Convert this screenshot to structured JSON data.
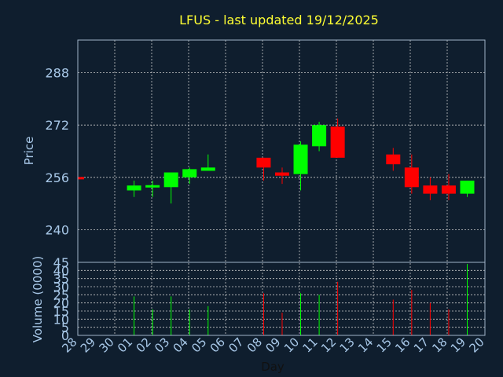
{
  "colors": {
    "background": "#0f1e2e",
    "title": "#ffff33",
    "axis_text": "#a8c8e8",
    "xlabel": "#111111",
    "grid": "#c8c8c8",
    "frame": "#a0b4c8",
    "up": "#00ff00",
    "down": "#ff0000"
  },
  "chart_data": {
    "type": "candlestick",
    "title": "LFUS - last updated 19/12/2025",
    "xlabel": "Day",
    "categories": [
      "28",
      "29",
      "30",
      "01",
      "02",
      "03",
      "04",
      "05",
      "06",
      "07",
      "08",
      "09",
      "10",
      "11",
      "12",
      "13",
      "14",
      "15",
      "16",
      "17",
      "18",
      "19",
      "20"
    ],
    "price": {
      "ylabel": "Price",
      "ylim": [
        230,
        298
      ],
      "ticks": [
        240,
        256,
        272,
        288
      ],
      "ohlc": [
        {
          "day": "28",
          "open": 256,
          "high": 256,
          "low": 256,
          "close": 255.5
        },
        {
          "day": "01",
          "open": 252,
          "high": 255,
          "low": 250,
          "close": 253.5
        },
        {
          "day": "02",
          "open": 253,
          "high": 255,
          "low": 250,
          "close": 253.5
        },
        {
          "day": "03",
          "open": 253,
          "high": 257,
          "low": 248,
          "close": 257.5
        },
        {
          "day": "04",
          "open": 256,
          "high": 259,
          "low": 254,
          "close": 258.5
        },
        {
          "day": "05",
          "open": 258,
          "high": 263,
          "low": 258,
          "close": 259
        },
        {
          "day": "08",
          "open": 262,
          "high": 262,
          "low": 255,
          "close": 259
        },
        {
          "day": "09",
          "open": 257.5,
          "high": 259,
          "low": 254,
          "close": 256.5
        },
        {
          "day": "10",
          "open": 257,
          "high": 267,
          "low": 252,
          "close": 266
        },
        {
          "day": "11",
          "open": 265.5,
          "high": 273,
          "low": 264,
          "close": 272
        },
        {
          "day": "12",
          "open": 271.5,
          "high": 274,
          "low": 262,
          "close": 262
        },
        {
          "day": "15",
          "open": 263,
          "high": 265,
          "low": 258,
          "close": 260
        },
        {
          "day": "16",
          "open": 259,
          "high": 263,
          "low": 251,
          "close": 253
        },
        {
          "day": "17",
          "open": 253.5,
          "high": 256,
          "low": 249,
          "close": 251
        },
        {
          "day": "18",
          "open": 253.5,
          "high": 257,
          "low": 249,
          "close": 251
        },
        {
          "day": "19",
          "open": 251,
          "high": 255,
          "low": 250,
          "close": 255
        }
      ]
    },
    "volume": {
      "ylabel": "Volume (0000)",
      "ylim": [
        0,
        45
      ],
      "ticks": [
        0,
        5,
        10,
        15,
        20,
        25,
        30,
        35,
        40,
        45
      ],
      "bars": [
        {
          "day": "01",
          "value": 24,
          "direction": "up"
        },
        {
          "day": "02",
          "value": 16,
          "direction": "up"
        },
        {
          "day": "03",
          "value": 24,
          "direction": "up"
        },
        {
          "day": "04",
          "value": 16,
          "direction": "up"
        },
        {
          "day": "05",
          "value": 18,
          "direction": "up"
        },
        {
          "day": "08",
          "value": 26,
          "direction": "down"
        },
        {
          "day": "09",
          "value": 14,
          "direction": "down"
        },
        {
          "day": "10",
          "value": 26,
          "direction": "up"
        },
        {
          "day": "11",
          "value": 25,
          "direction": "up"
        },
        {
          "day": "12",
          "value": 33,
          "direction": "down"
        },
        {
          "day": "15",
          "value": 22,
          "direction": "down"
        },
        {
          "day": "16",
          "value": 28,
          "direction": "down"
        },
        {
          "day": "17",
          "value": 20,
          "direction": "down"
        },
        {
          "day": "18",
          "value": 16,
          "direction": "down"
        },
        {
          "day": "19",
          "value": 44,
          "direction": "up"
        }
      ]
    },
    "grid": true
  }
}
